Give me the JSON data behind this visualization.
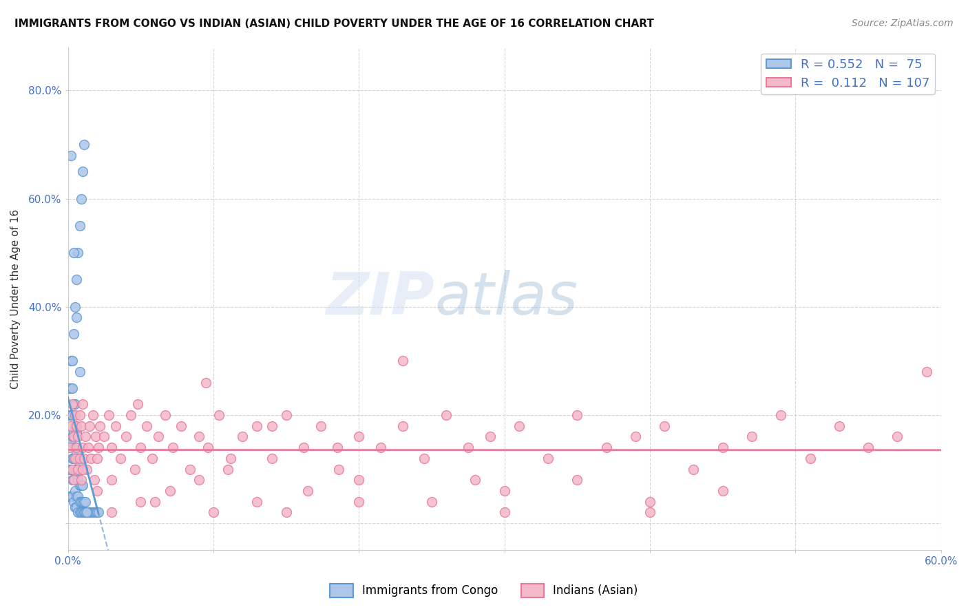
{
  "title": "IMMIGRANTS FROM CONGO VS INDIAN (ASIAN) CHILD POVERTY UNDER THE AGE OF 16 CORRELATION CHART",
  "source": "Source: ZipAtlas.com",
  "ylabel": "Child Poverty Under the Age of 16",
  "xlim": [
    0.0,
    0.6
  ],
  "ylim": [
    -0.05,
    0.88
  ],
  "xticks": [
    0.0,
    0.1,
    0.2,
    0.3,
    0.4,
    0.5,
    0.6
  ],
  "xticklabels": [
    "0.0%",
    "",
    "",
    "",
    "",
    "",
    "60.0%"
  ],
  "yticks": [
    0.0,
    0.2,
    0.4,
    0.6,
    0.8
  ],
  "background_color": "#ffffff",
  "plot_bg_color": "#ffffff",
  "grid_color": "#cccccc",
  "congo_color": "#aec6e8",
  "congo_edge_color": "#5b9bd5",
  "indian_color": "#f4b8c8",
  "indian_edge_color": "#e8799a",
  "congo_R": 0.552,
  "congo_N": 75,
  "indian_R": 0.112,
  "indian_N": 107,
  "watermark": "ZIPatlas",
  "congo_x": [
    0.001,
    0.001,
    0.001,
    0.001,
    0.001,
    0.002,
    0.002,
    0.002,
    0.002,
    0.002,
    0.002,
    0.003,
    0.003,
    0.003,
    0.003,
    0.003,
    0.003,
    0.004,
    0.004,
    0.004,
    0.004,
    0.004,
    0.005,
    0.005,
    0.005,
    0.005,
    0.005,
    0.005,
    0.006,
    0.006,
    0.006,
    0.006,
    0.006,
    0.007,
    0.007,
    0.007,
    0.007,
    0.008,
    0.008,
    0.008,
    0.008,
    0.009,
    0.009,
    0.009,
    0.01,
    0.01,
    0.01,
    0.011,
    0.011,
    0.012,
    0.012,
    0.013,
    0.014,
    0.015,
    0.016,
    0.017,
    0.018,
    0.019,
    0.02,
    0.021,
    0.003,
    0.004,
    0.005,
    0.006,
    0.007,
    0.008,
    0.009,
    0.01,
    0.011,
    0.012,
    0.013,
    0.002,
    0.004,
    0.006,
    0.008
  ],
  "congo_y": [
    0.05,
    0.1,
    0.15,
    0.2,
    0.25,
    0.05,
    0.1,
    0.15,
    0.2,
    0.25,
    0.3,
    0.05,
    0.08,
    0.12,
    0.16,
    0.2,
    0.25,
    0.04,
    0.08,
    0.12,
    0.17,
    0.22,
    0.03,
    0.06,
    0.1,
    0.14,
    0.18,
    0.22,
    0.03,
    0.05,
    0.09,
    0.13,
    0.17,
    0.02,
    0.05,
    0.08,
    0.12,
    0.02,
    0.04,
    0.07,
    0.11,
    0.02,
    0.04,
    0.07,
    0.02,
    0.04,
    0.07,
    0.02,
    0.04,
    0.02,
    0.04,
    0.02,
    0.02,
    0.02,
    0.02,
    0.02,
    0.02,
    0.02,
    0.02,
    0.02,
    0.3,
    0.35,
    0.4,
    0.45,
    0.5,
    0.55,
    0.6,
    0.65,
    0.7,
    0.02,
    0.02,
    0.68,
    0.5,
    0.38,
    0.28
  ],
  "indian_x": [
    0.001,
    0.002,
    0.003,
    0.003,
    0.004,
    0.004,
    0.005,
    0.005,
    0.006,
    0.006,
    0.007,
    0.007,
    0.008,
    0.008,
    0.009,
    0.009,
    0.01,
    0.01,
    0.011,
    0.012,
    0.013,
    0.014,
    0.015,
    0.016,
    0.017,
    0.018,
    0.019,
    0.02,
    0.021,
    0.022,
    0.025,
    0.028,
    0.03,
    0.033,
    0.036,
    0.04,
    0.043,
    0.046,
    0.05,
    0.054,
    0.058,
    0.062,
    0.067,
    0.072,
    0.078,
    0.084,
    0.09,
    0.096,
    0.104,
    0.112,
    0.12,
    0.13,
    0.14,
    0.15,
    0.162,
    0.174,
    0.186,
    0.2,
    0.215,
    0.23,
    0.245,
    0.26,
    0.275,
    0.29,
    0.31,
    0.33,
    0.35,
    0.37,
    0.39,
    0.41,
    0.43,
    0.45,
    0.47,
    0.49,
    0.51,
    0.53,
    0.55,
    0.57,
    0.59,
    0.048,
    0.095,
    0.14,
    0.185,
    0.23,
    0.28,
    0.01,
    0.02,
    0.03,
    0.05,
    0.07,
    0.09,
    0.11,
    0.13,
    0.165,
    0.2,
    0.25,
    0.3,
    0.35,
    0.4,
    0.45,
    0.03,
    0.06,
    0.1,
    0.15,
    0.2,
    0.3,
    0.4
  ],
  "indian_y": [
    0.14,
    0.18,
    0.1,
    0.22,
    0.08,
    0.16,
    0.12,
    0.2,
    0.14,
    0.18,
    0.1,
    0.16,
    0.12,
    0.2,
    0.08,
    0.18,
    0.14,
    0.22,
    0.12,
    0.16,
    0.1,
    0.14,
    0.18,
    0.12,
    0.2,
    0.08,
    0.16,
    0.12,
    0.14,
    0.18,
    0.16,
    0.2,
    0.14,
    0.18,
    0.12,
    0.16,
    0.2,
    0.1,
    0.14,
    0.18,
    0.12,
    0.16,
    0.2,
    0.14,
    0.18,
    0.1,
    0.16,
    0.14,
    0.2,
    0.12,
    0.16,
    0.18,
    0.12,
    0.2,
    0.14,
    0.18,
    0.1,
    0.16,
    0.14,
    0.18,
    0.12,
    0.2,
    0.14,
    0.16,
    0.18,
    0.12,
    0.2,
    0.14,
    0.16,
    0.18,
    0.1,
    0.14,
    0.16,
    0.2,
    0.12,
    0.18,
    0.14,
    0.16,
    0.28,
    0.22,
    0.26,
    0.18,
    0.14,
    0.3,
    0.08,
    0.1,
    0.06,
    0.08,
    0.04,
    0.06,
    0.08,
    0.1,
    0.04,
    0.06,
    0.08,
    0.04,
    0.06,
    0.08,
    0.04,
    0.06,
    0.02,
    0.04,
    0.02,
    0.02,
    0.04,
    0.02,
    0.02
  ]
}
